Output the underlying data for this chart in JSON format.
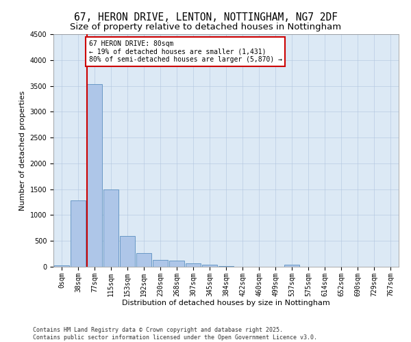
{
  "title": "67, HERON DRIVE, LENTON, NOTTINGHAM, NG7 2DF",
  "subtitle": "Size of property relative to detached houses in Nottingham",
  "xlabel": "Distribution of detached houses by size in Nottingham",
  "ylabel": "Number of detached properties",
  "bar_labels": [
    "0sqm",
    "38sqm",
    "77sqm",
    "115sqm",
    "153sqm",
    "192sqm",
    "230sqm",
    "268sqm",
    "307sqm",
    "345sqm",
    "384sqm",
    "422sqm",
    "460sqm",
    "499sqm",
    "537sqm",
    "575sqm",
    "614sqm",
    "652sqm",
    "690sqm",
    "729sqm",
    "767sqm"
  ],
  "bar_values": [
    30,
    1280,
    3540,
    1490,
    590,
    260,
    135,
    120,
    65,
    35,
    10,
    0,
    0,
    0,
    35,
    0,
    0,
    0,
    0,
    0,
    0
  ],
  "bar_color": "#aec6e8",
  "bar_edge_color": "#5a8fc0",
  "annotation_text": "67 HERON DRIVE: 80sqm\n← 19% of detached houses are smaller (1,431)\n80% of semi-detached houses are larger (5,870) →",
  "annotation_box_color": "#ffffff",
  "annotation_box_edge": "#cc0000",
  "vline_color": "#cc0000",
  "plot_bg_color": "#dce9f5",
  "footer_text": "Contains HM Land Registry data © Crown copyright and database right 2025.\nContains public sector information licensed under the Open Government Licence v3.0.",
  "ylim": [
    0,
    4500
  ],
  "yticks": [
    0,
    500,
    1000,
    1500,
    2000,
    2500,
    3000,
    3500,
    4000,
    4500
  ],
  "title_fontsize": 10.5,
  "subtitle_fontsize": 9.5,
  "ylabel_fontsize": 8,
  "xlabel_fontsize": 8,
  "tick_fontsize": 7,
  "footer_fontsize": 6,
  "annot_fontsize": 7
}
